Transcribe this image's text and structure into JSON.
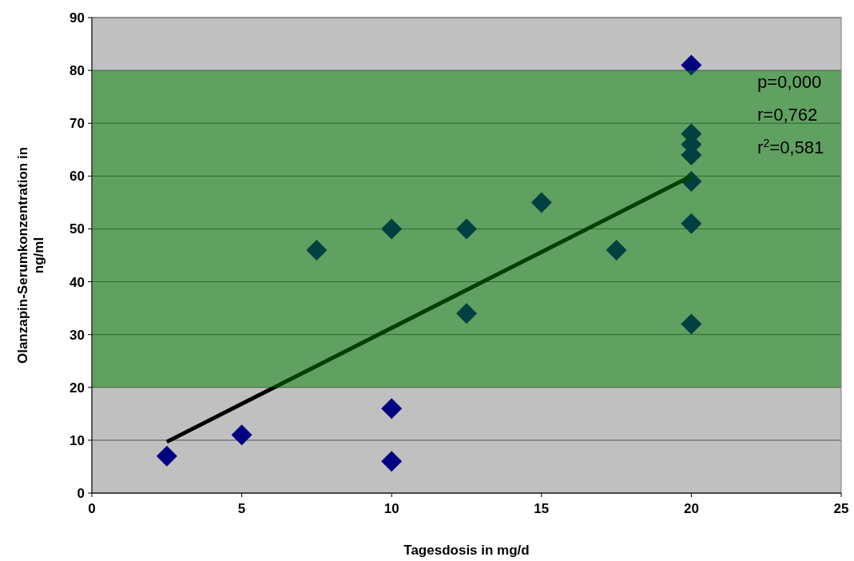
{
  "chart_data": {
    "type": "scatter",
    "xlabel": "Tagesdosis in mg/d",
    "ylabel": "Olanzapin-Serumkonzentration in ng/ml",
    "xlim": [
      0,
      25
    ],
    "xticks": [
      0,
      5,
      10,
      15,
      20,
      25
    ],
    "ylim": [
      0,
      90
    ],
    "yticks": [
      0,
      10,
      20,
      30,
      40,
      50,
      60,
      70,
      80,
      90
    ],
    "grid": "y",
    "series": [
      {
        "marker": "diamond",
        "color": "#000080",
        "x": [
          2.5,
          5,
          7.5,
          10,
          10,
          10,
          12.5,
          12.5,
          15,
          17.5,
          20,
          20,
          20,
          20,
          20,
          20,
          20
        ],
        "values": [
          7,
          11,
          46,
          50,
          16,
          6,
          50,
          34,
          55,
          46,
          81,
          68,
          66,
          64,
          59,
          51,
          32
        ]
      },
      {
        "type": "line",
        "color": "#000000",
        "x": [
          2.5,
          20
        ],
        "values": [
          9.7,
          60
        ]
      }
    ],
    "bands": [
      {
        "axis": "y",
        "from": 20,
        "to": 80,
        "color": "#008000"
      }
    ],
    "annotations": [
      "p=0,000",
      "r=0,762",
      "r$^{2}$=0,581"
    ]
  }
}
